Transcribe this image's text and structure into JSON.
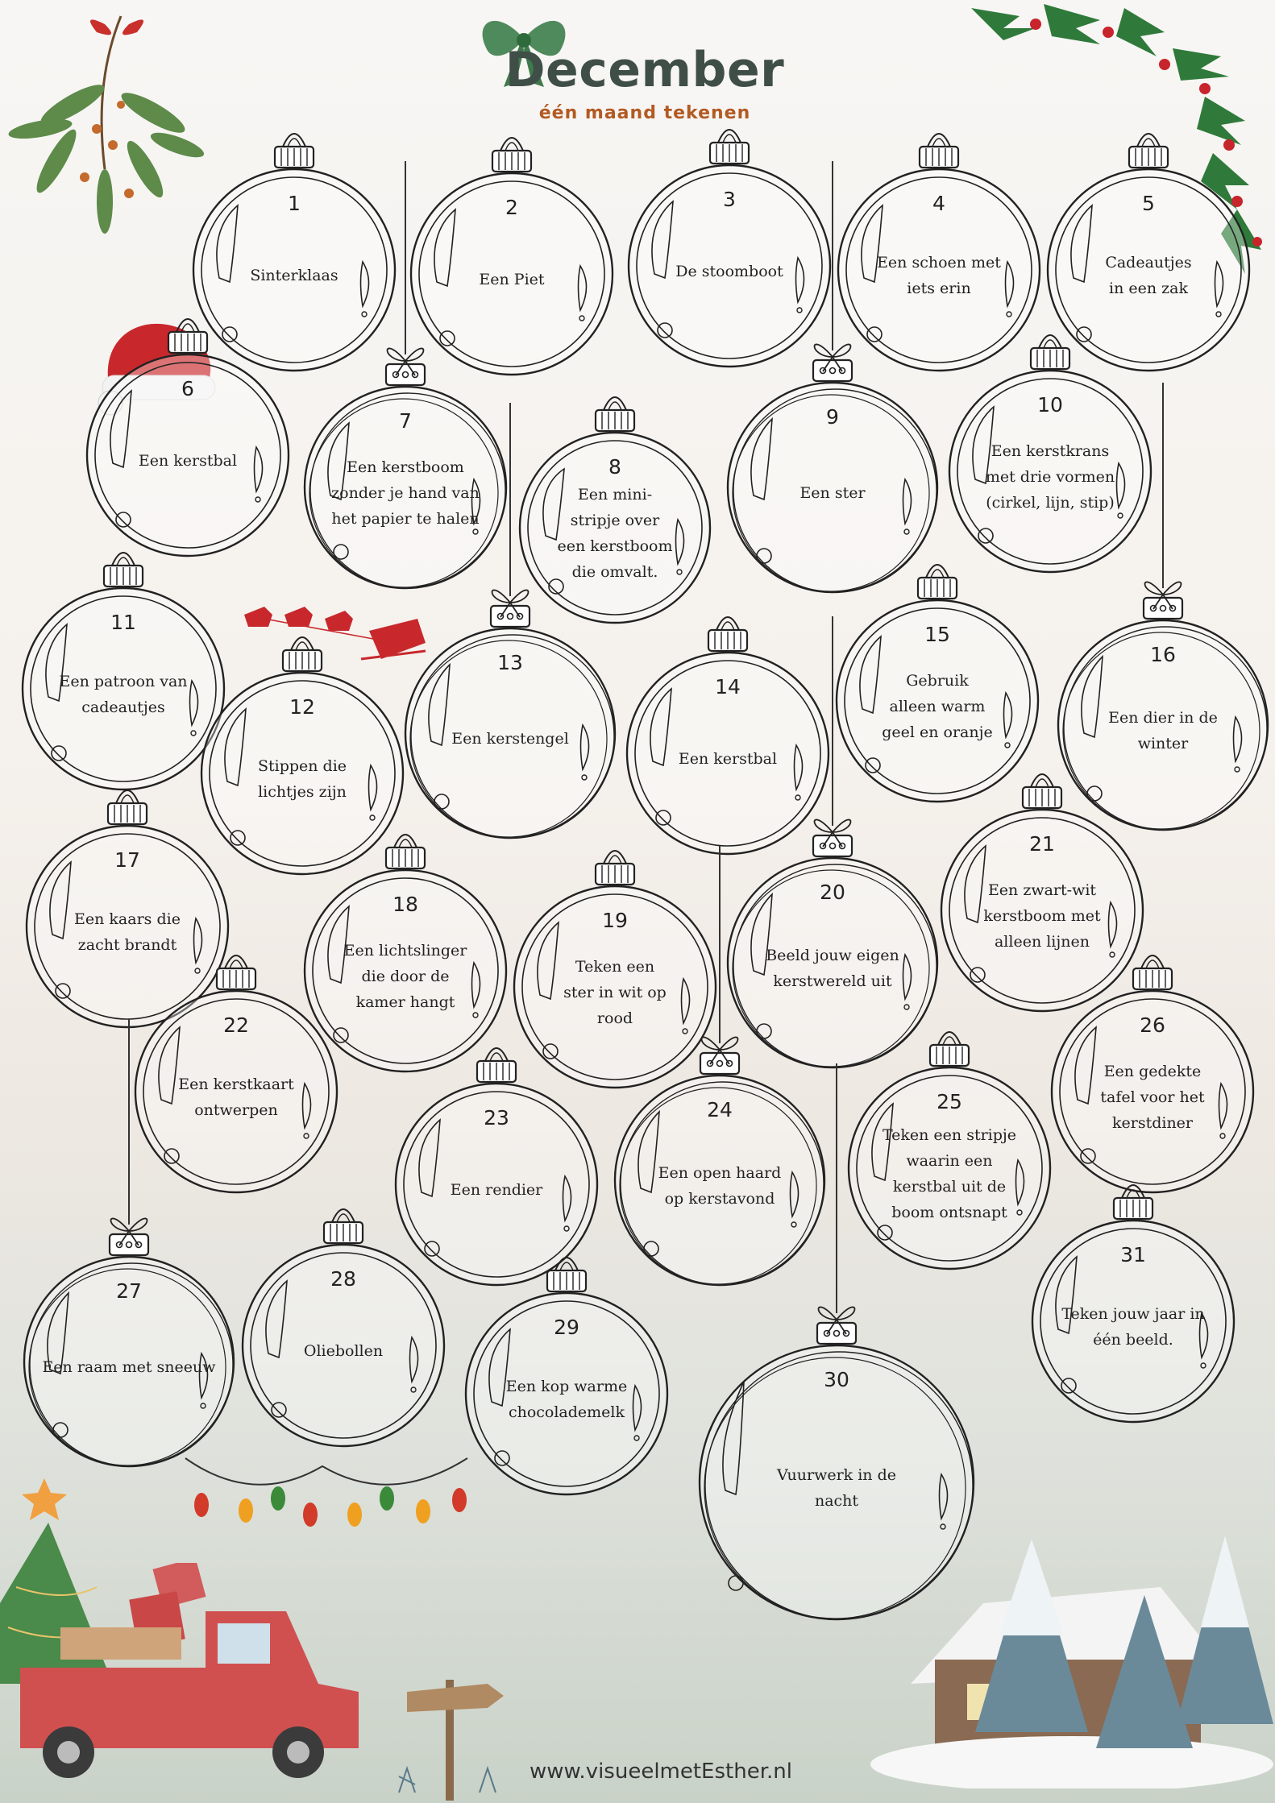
{
  "title": "December",
  "subtitle": "één maand tekenen",
  "footer": "www.visueelmetEsther.nl",
  "colors": {
    "title": "#3f4f48",
    "subtitle": "#b25a22",
    "ink": "#222222"
  },
  "days": [
    {
      "day": "1",
      "prompt": "Sinterklaas"
    },
    {
      "day": "2",
      "prompt": "Een Piet"
    },
    {
      "day": "3",
      "prompt": "De stoomboot"
    },
    {
      "day": "4",
      "prompt": "Een schoen met\niets erin"
    },
    {
      "day": "5",
      "prompt": "Cadeautjes\nin een zak"
    },
    {
      "day": "6",
      "prompt": "Een kerstbal"
    },
    {
      "day": "7",
      "prompt": "Een kerstboom\nzonder je hand van\nhet papier te halen"
    },
    {
      "day": "8",
      "prompt": "Een mini-\nstripje over\neen kerstboom\ndie omvalt."
    },
    {
      "day": "9",
      "prompt": "Een ster"
    },
    {
      "day": "10",
      "prompt": "Een kerstkrans\nmet drie vormen\n(cirkel, lijn, stip)"
    },
    {
      "day": "11",
      "prompt": "Een patroon van\ncadeautjes"
    },
    {
      "day": "12",
      "prompt": "Stippen die\nlichtjes zijn"
    },
    {
      "day": "13",
      "prompt": "Een kerstengel"
    },
    {
      "day": "14",
      "prompt": "Een kerstbal"
    },
    {
      "day": "15",
      "prompt": "Gebruik\nalleen warm\ngeel en oranje"
    },
    {
      "day": "16",
      "prompt": "Een dier in de\nwinter"
    },
    {
      "day": "17",
      "prompt": "Een kaars die\nzacht brandt"
    },
    {
      "day": "18",
      "prompt": "Een lichtslinger\ndie door de\nkamer hangt"
    },
    {
      "day": "19",
      "prompt": "Teken een\nster in wit op\nrood"
    },
    {
      "day": "20",
      "prompt": "Beeld jouw eigen\nkerstwereld uit"
    },
    {
      "day": "21",
      "prompt": "Een zwart-wit\nkerstboom met\nalleen lijnen"
    },
    {
      "day": "22",
      "prompt": "Een kerstkaart\nontwerpen"
    },
    {
      "day": "23",
      "prompt": "Een rendier"
    },
    {
      "day": "24",
      "prompt": "Een open haard\nop kerstavond"
    },
    {
      "day": "25",
      "prompt": "Teken een stripje\nwaarin een\nkerstbal uit de\nboom ontsnapt"
    },
    {
      "day": "26",
      "prompt": "Een gedekte\ntafel voor het\nkerstdiner"
    },
    {
      "day": "27",
      "prompt": "Een raam met sneeuw"
    },
    {
      "day": "28",
      "prompt": "Oliebollen"
    },
    {
      "day": "29",
      "prompt": "Een kop warme\nchocolademelk"
    },
    {
      "day": "30",
      "prompt": "Vuurwerk in de\nnacht"
    },
    {
      "day": "31",
      "prompt": "Teken jouw jaar in één beeld."
    }
  ]
}
